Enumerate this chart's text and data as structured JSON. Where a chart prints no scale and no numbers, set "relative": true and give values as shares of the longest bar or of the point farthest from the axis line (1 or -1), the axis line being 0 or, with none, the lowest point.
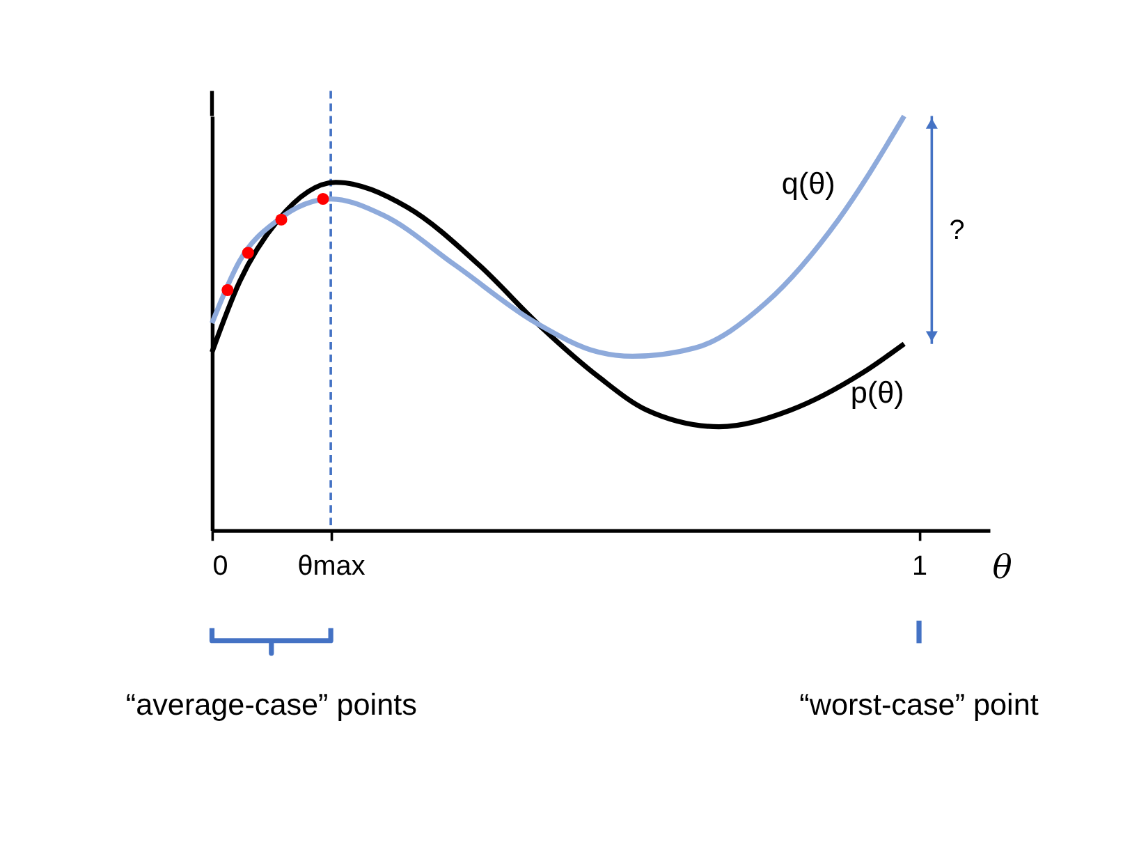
{
  "chart_data": {
    "type": "line",
    "relative": true,
    "xlabel": "θ",
    "xlim": [
      0,
      1.1
    ],
    "xticks": [
      0,
      {
        "value": 0.168,
        "label": "θmax"
      },
      1
    ],
    "grid": false,
    "marker": "none",
    "line_style": "solid",
    "series": [
      {
        "name": "p(θ)",
        "color": "#000000",
        "x": [
          0,
          0.039,
          0.094,
          0.175,
          0.276,
          0.378,
          0.466,
          0.547,
          0.615,
          0.717,
          0.818,
          0.92,
          0.979
        ],
        "values": [
          0.43,
          0.6,
          0.75,
          0.84,
          0.78,
          0.64,
          0.49,
          0.37,
          0.29,
          0.25,
          0.29,
          0.38,
          0.45
        ]
      },
      {
        "name": "q(θ)",
        "color": "#8eaadb",
        "x": [
          0,
          0.039,
          0.094,
          0.168,
          0.243,
          0.344,
          0.459,
          0.547,
          0.595,
          0.683,
          0.784,
          0.886,
          0.979
        ],
        "values": [
          0.5,
          0.65,
          0.75,
          0.8,
          0.76,
          0.64,
          0.5,
          0.43,
          0.42,
          0.44,
          0.55,
          0.75,
          1.0
        ]
      },
      {
        "type": "scatter",
        "marker": "circle",
        "color": "#ff0000",
        "x": [
          0.022,
          0.051,
          0.098,
          0.157
        ],
        "values": [
          0.58,
          0.67,
          0.75,
          0.8
        ]
      }
    ],
    "ref_lines": [
      {
        "axis": "x",
        "value": 0.168,
        "color": "#4472c4",
        "line_style": "dashed"
      }
    ],
    "annotations": [
      "?",
      "“average-case” points",
      "“worst-case” point"
    ]
  }
}
